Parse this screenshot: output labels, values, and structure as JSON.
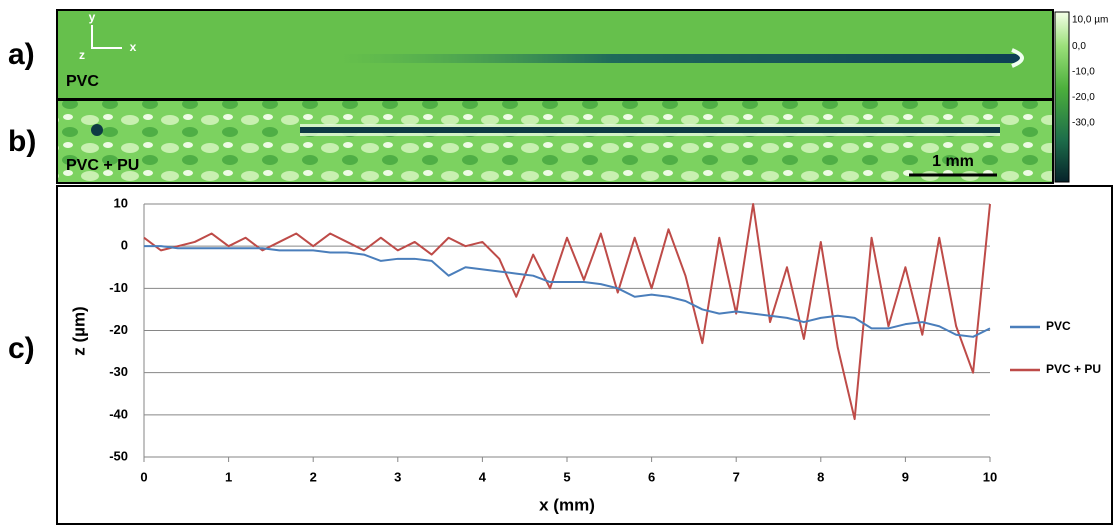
{
  "panel_labels": [
    "a)",
    "b)",
    "c)"
  ],
  "images": [
    {
      "label": "PVC"
    },
    {
      "label": "PVC + PU"
    }
  ],
  "axes_icon": {
    "y": "y",
    "x": "x",
    "z": "z"
  },
  "scale_bar": "1 mm",
  "colorbar": {
    "labels": [
      "10,0 µm",
      "0,0",
      "-10,0",
      "-20,0",
      "-30,0"
    ]
  },
  "chart_data": {
    "type": "line",
    "x_label": "x (mm)",
    "y_label": "z (µm)",
    "x": [
      0,
      0.2,
      0.4,
      0.6,
      0.8,
      1,
      1.2,
      1.4,
      1.6,
      1.8,
      2,
      2.2,
      2.4,
      2.6,
      2.8,
      3,
      3.2,
      3.4,
      3.6,
      3.8,
      4,
      4.2,
      4.4,
      4.6,
      4.8,
      5,
      5.2,
      5.4,
      5.6,
      5.8,
      6,
      6.2,
      6.4,
      6.6,
      6.8,
      7,
      7.2,
      7.4,
      7.6,
      7.8,
      8,
      8.2,
      8.4,
      8.6,
      8.8,
      9,
      9.2,
      9.4,
      9.6,
      9.8,
      10
    ],
    "series": [
      {
        "name": "PVC",
        "color": "#4a7ebb",
        "values": [
          0,
          0,
          -0.5,
          -0.5,
          -0.5,
          -0.5,
          -0.5,
          -0.5,
          -1,
          -1,
          -1,
          -1.5,
          -1.5,
          -2,
          -3.5,
          -3,
          -3,
          -3.5,
          -7,
          -5,
          -5.5,
          -6,
          -6.5,
          -7,
          -8.5,
          -8.5,
          -8.5,
          -9,
          -10,
          -12,
          -11.5,
          -12,
          -13,
          -15,
          -16,
          -15.5,
          -16,
          -16.5,
          -17,
          -18,
          -17,
          -16.5,
          -17,
          -19.5,
          -19.5,
          -18.5,
          -18,
          -19,
          -21,
          -21.5,
          -19.5
        ]
      },
      {
        "name": "PVC + PU",
        "color": "#be4b48",
        "values": [
          2,
          -1,
          0,
          1,
          3,
          0,
          2,
          -1,
          1,
          3,
          0,
          3,
          1,
          -1,
          2,
          -1,
          1,
          -2,
          2,
          0,
          1,
          -3,
          -12,
          -2,
          -10,
          2,
          -8,
          3,
          -11,
          2,
          -10,
          4,
          -7,
          -23,
          2,
          -16,
          10,
          -18,
          -5,
          -22,
          1,
          -24,
          -41,
          2,
          -19,
          -5,
          -21,
          2,
          -19,
          -30,
          10
        ]
      }
    ],
    "xlim": [
      0,
      10
    ],
    "xticks": [
      0,
      1,
      2,
      3,
      4,
      5,
      6,
      7,
      8,
      9,
      10
    ],
    "ylim": [
      -50,
      10
    ],
    "yticks": [
      -50,
      -40,
      -30,
      -20,
      -10,
      0,
      10
    ],
    "grid": true,
    "legend": "right"
  }
}
